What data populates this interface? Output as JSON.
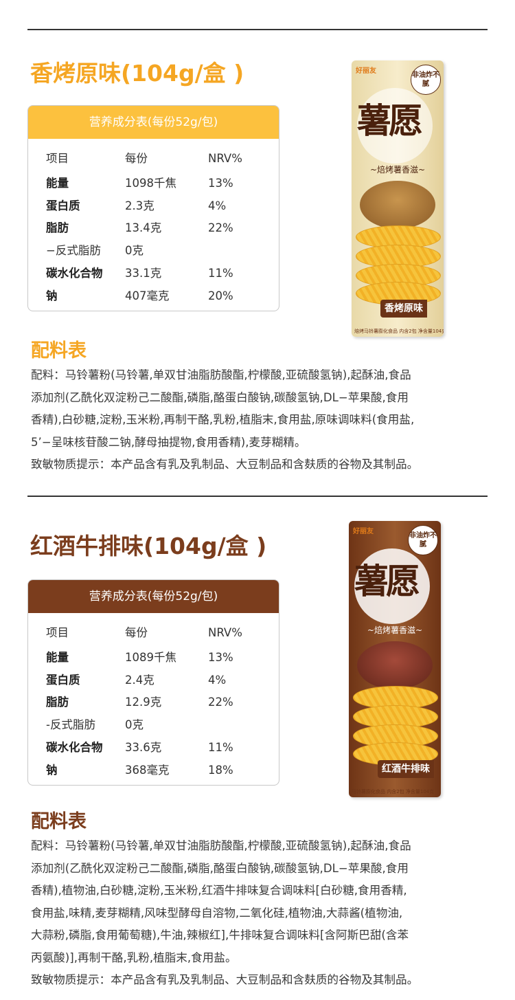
{
  "products": [
    {
      "title": "香烤原味(104g/盒 )",
      "title_color": "#f5a623",
      "accent_color": "#fcc13e",
      "table": {
        "header": "营养成分表(每份52g/包)",
        "columns": [
          "项目",
          "每份",
          "NRV%"
        ],
        "rows": [
          {
            "item": "能量",
            "value": "1098千焦",
            "nrv": "13%"
          },
          {
            "item": "蛋白质",
            "value": "2.3克",
            "nrv": "4%"
          },
          {
            "item": "脂肪",
            "value": "13.4克",
            "nrv": "22%"
          },
          {
            "item": "−反式脂肪",
            "value": "0克",
            "nrv": ""
          },
          {
            "item": "碳水化合物",
            "value": "33.1克",
            "nrv": "11%"
          },
          {
            "item": "钠",
            "value": "407毫克",
            "nrv": "20%"
          }
        ]
      },
      "ingredients_heading": "配料表",
      "ingredients_lines": [
        "配料：马铃薯粉(马铃薯,单双甘油脂肪酸酯,柠檬酸,亚硫酸氢钠),起酥油,食品",
        "添加剂(乙酰化双淀粉己二酸酯,磷脂,酪蛋白酸钠,碳酸氢钠,DL−苹果酸,食用",
        "香精),白砂糖,淀粉,玉米粉,再制干酪,乳粉,植脂末,食用盐,原味调味料(食用盐,",
        "5’−呈味核苷酸二钠,酵母抽提物,食用香精),麦芽糊精。",
        "致敏物质提示：本产品含有乳及乳制品、大豆制品和含麸质的谷物及其制品。"
      ],
      "package": {
        "logo": "好丽友",
        "badge": "非油炸不腻",
        "brand": "薯愿",
        "slogan": "~焙烤薯香滋~",
        "flavor": "香烤原味",
        "footer": "焙烤马铃薯膨化食品 内含2包 净含量104克"
      }
    },
    {
      "title": "红酒牛排味(104g/盒 )",
      "title_color": "#7b3d1d",
      "accent_color": "#7b3d1d",
      "table": {
        "header": "营养成分表(每份52g/包)",
        "columns": [
          "项目",
          "每份",
          "NRV%"
        ],
        "rows": [
          {
            "item": "能量",
            "value": "1089千焦",
            "nrv": "13%"
          },
          {
            "item": "蛋白质",
            "value": "2.4克",
            "nrv": "4%"
          },
          {
            "item": "脂肪",
            "value": "12.9克",
            "nrv": "22%"
          },
          {
            "item": "-反式脂肪",
            "value": "0克",
            "nrv": ""
          },
          {
            "item": "碳水化合物",
            "value": "33.6克",
            "nrv": "11%"
          },
          {
            "item": "钠",
            "value": "368毫克",
            "nrv": "18%"
          }
        ]
      },
      "ingredients_heading": "配料表",
      "ingredients_lines": [
        "配料：马铃薯粉(马铃薯,单双甘油脂肪酸酯,柠檬酸,亚硫酸氢钠),起酥油,食品",
        "添加剂(乙酰化双淀粉己二酸酯,磷脂,酪蛋白酸钠,碳酸氢钠,DL−苹果酸,食用",
        "香精),植物油,白砂糖,淀粉,玉米粉,红酒牛排味复合调味料[白砂糖,食用香精,",
        "食用盐,味精,麦芽糊精,风味型酵母自溶物,二氧化硅,植物油,大蒜酱(植物油,",
        "大蒜粉,磷脂,食用葡萄糖),牛油,辣椒红],牛排味复合调味料[含阿斯巴甜(含苯",
        "丙氨酸)],再制干酪,乳粉,植脂末,食用盐。",
        "致敏物质提示：本产品含有乳及乳制品、大豆制品和含麸质的谷物及其制品。"
      ],
      "package": {
        "logo": "好丽友",
        "badge": "非油炸不腻",
        "brand": "薯愿",
        "slogan": "~焙烤薯香滋~",
        "flavor": "红酒牛排味",
        "footer": "马铃薯膨化食品 内含2包 净含量104克"
      }
    }
  ]
}
